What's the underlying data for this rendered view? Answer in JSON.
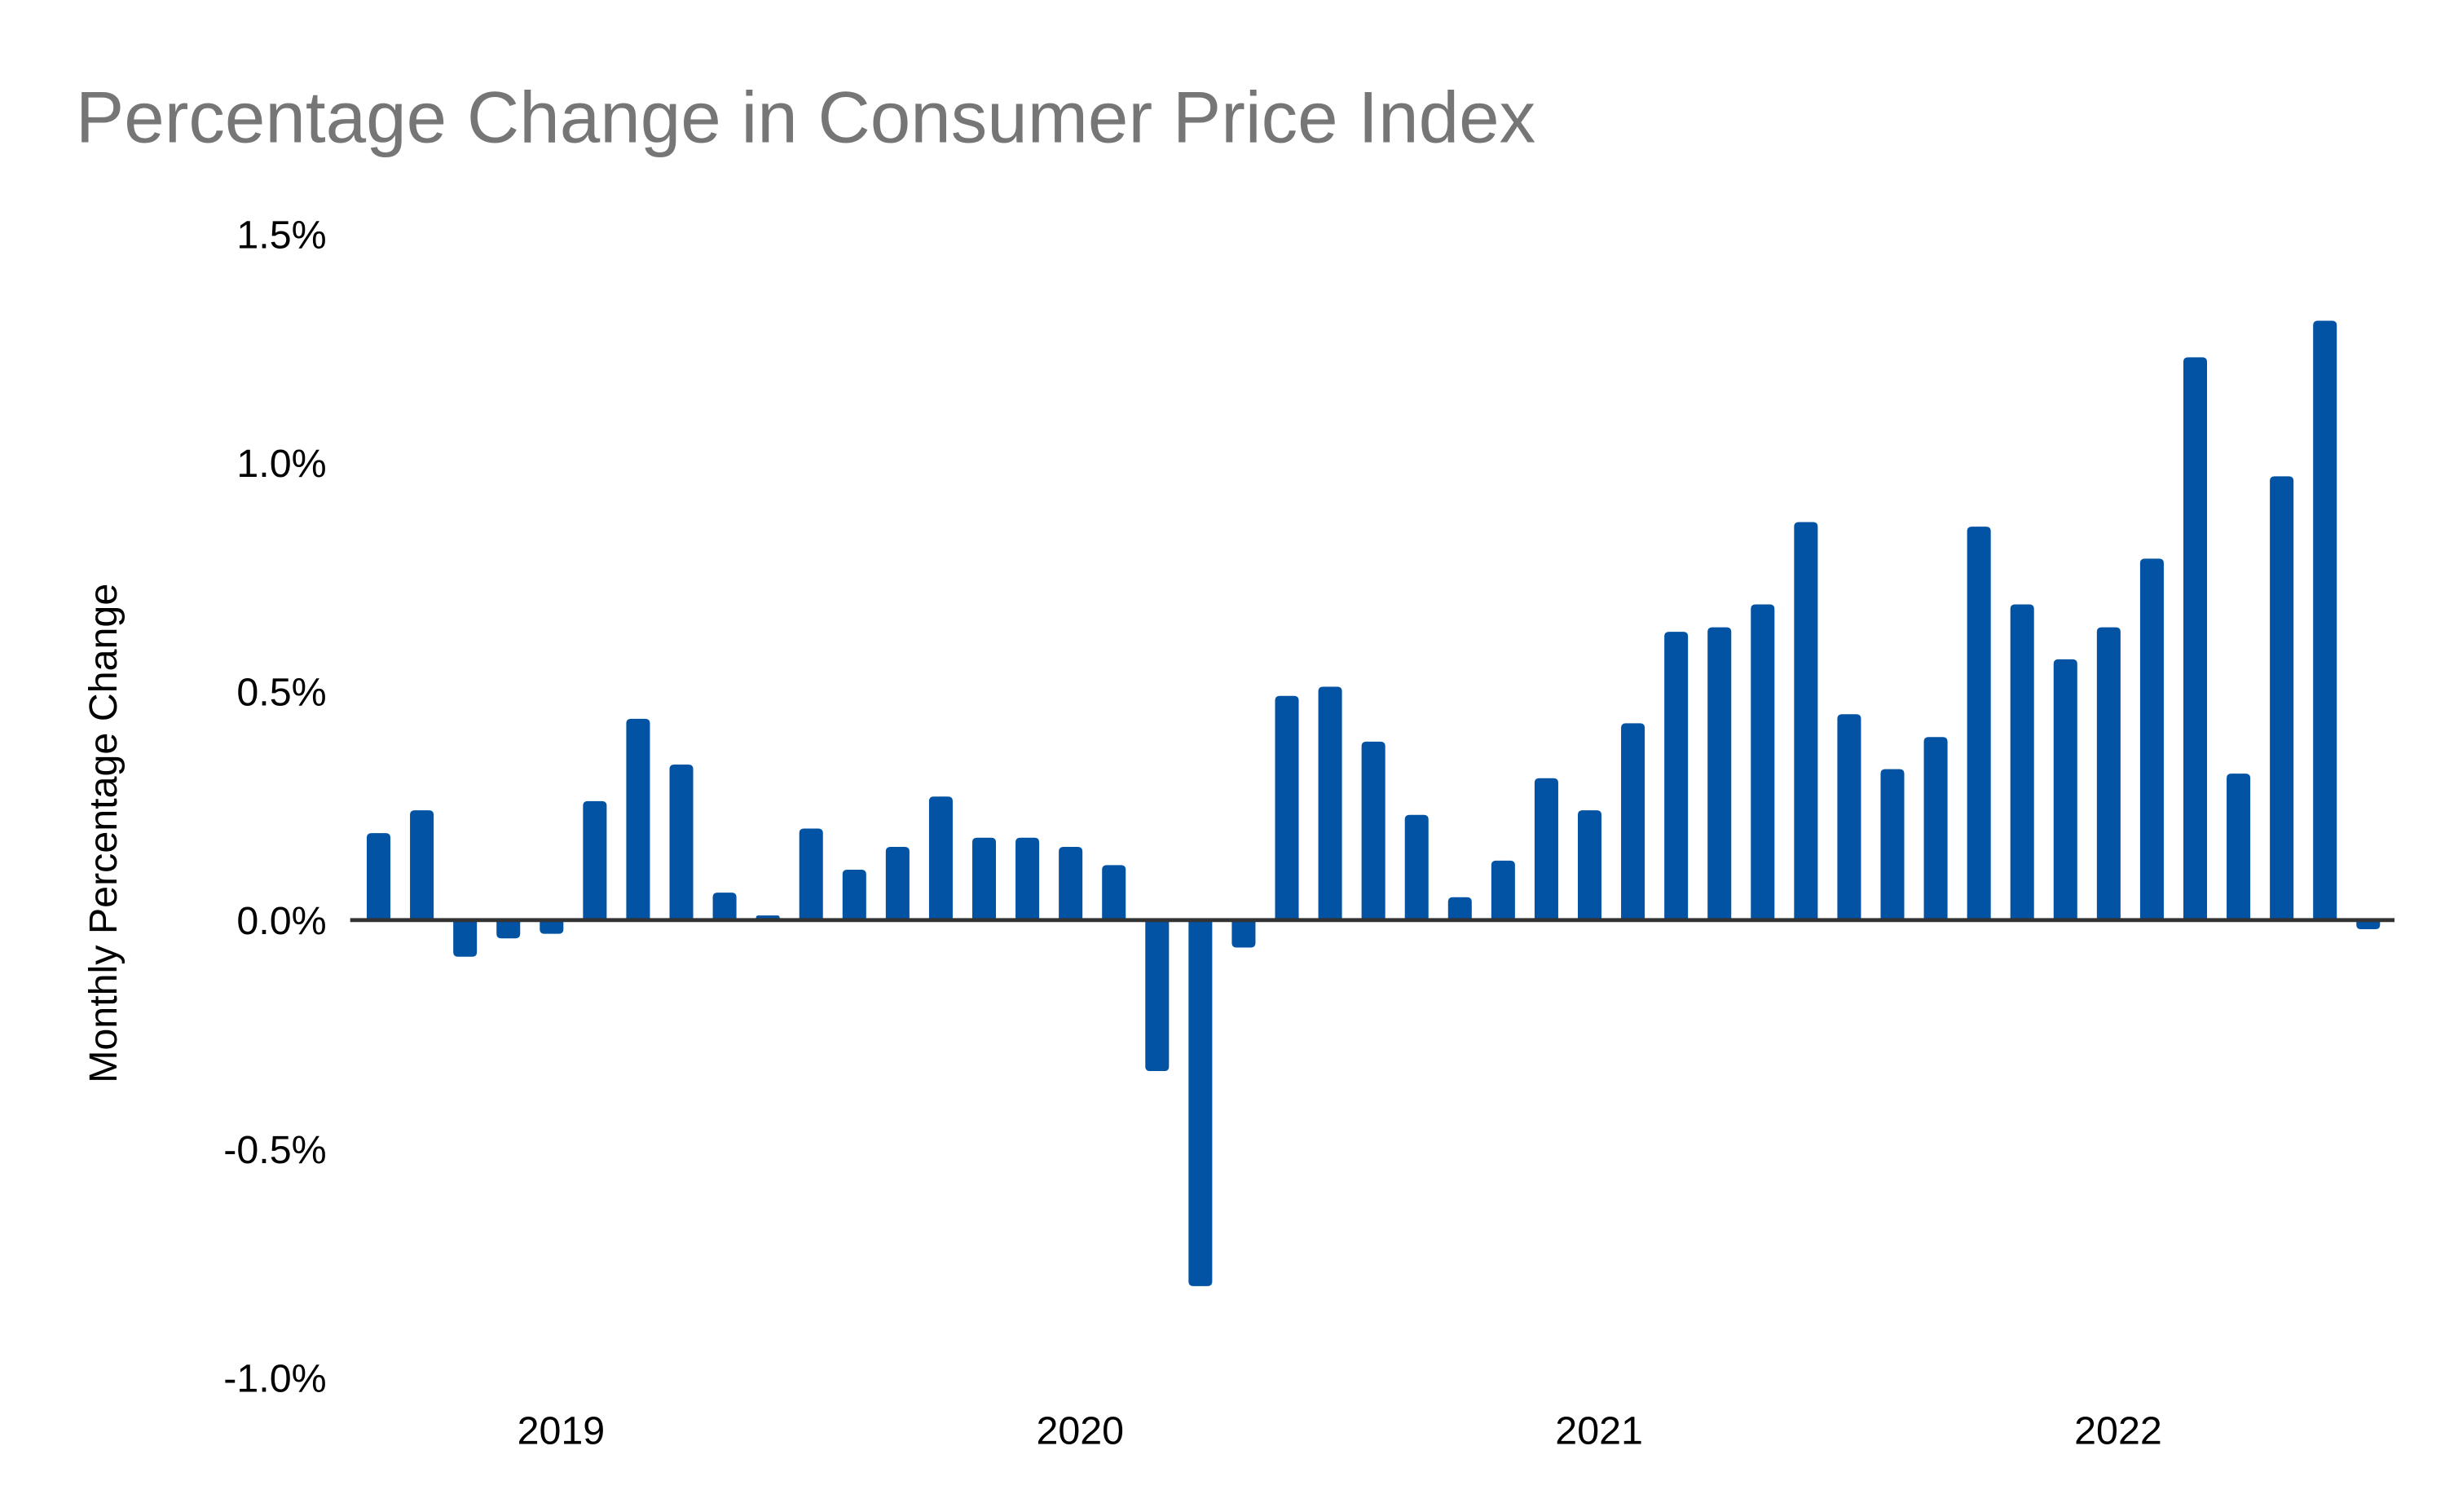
{
  "chart_data": {
    "type": "bar",
    "title": "Percentage Change in Consumer Price Index",
    "xlabel": "",
    "ylabel": "Monthly Percentage Change",
    "ylim": [
      -1.0,
      1.5
    ],
    "yticks": [
      1.5,
      1.0,
      0.5,
      0.0,
      -0.5,
      -1.0
    ],
    "ytick_labels": [
      "1.5%",
      "1.0%",
      "0.5%",
      "0.0%",
      "-0.5%",
      "-1.0%"
    ],
    "xtick_labels": [
      "2019",
      "2020",
      "2021",
      "2022"
    ],
    "xtick_positions": [
      4,
      16,
      28,
      40
    ],
    "categories": [
      "2018-09",
      "2018-10",
      "2018-11",
      "2018-12",
      "2019-01",
      "2019-02",
      "2019-03",
      "2019-04",
      "2019-05",
      "2019-06",
      "2019-07",
      "2019-08",
      "2019-09",
      "2019-10",
      "2019-11",
      "2019-12",
      "2020-01",
      "2020-02",
      "2020-03",
      "2020-04",
      "2020-05",
      "2020-06",
      "2020-07",
      "2020-08",
      "2020-09",
      "2020-10",
      "2020-11",
      "2020-12",
      "2021-01",
      "2021-02",
      "2021-03",
      "2021-04",
      "2021-05",
      "2021-06",
      "2021-07",
      "2021-08",
      "2021-09",
      "2021-10",
      "2021-11",
      "2021-12",
      "2022-01",
      "2022-02",
      "2022-03",
      "2022-04",
      "2022-05",
      "2022-06",
      "2022-07"
    ],
    "values": [
      0.19,
      0.24,
      -0.08,
      -0.04,
      -0.03,
      0.26,
      0.44,
      0.34,
      0.06,
      0.01,
      0.2,
      0.11,
      0.16,
      0.27,
      0.18,
      0.18,
      0.16,
      0.12,
      -0.33,
      -0.8,
      -0.06,
      0.49,
      0.51,
      0.39,
      0.23,
      0.05,
      0.13,
      0.31,
      0.24,
      0.43,
      0.63,
      0.64,
      0.69,
      0.87,
      0.45,
      0.33,
      0.4,
      0.86,
      0.69,
      0.57,
      0.64,
      0.79,
      1.23,
      0.32,
      0.97,
      1.31,
      -0.02
    ],
    "grid": false,
    "colors": {
      "bar": "#0353A4",
      "axis": "#333333",
      "title": "#767676",
      "text": "#000000"
    }
  }
}
